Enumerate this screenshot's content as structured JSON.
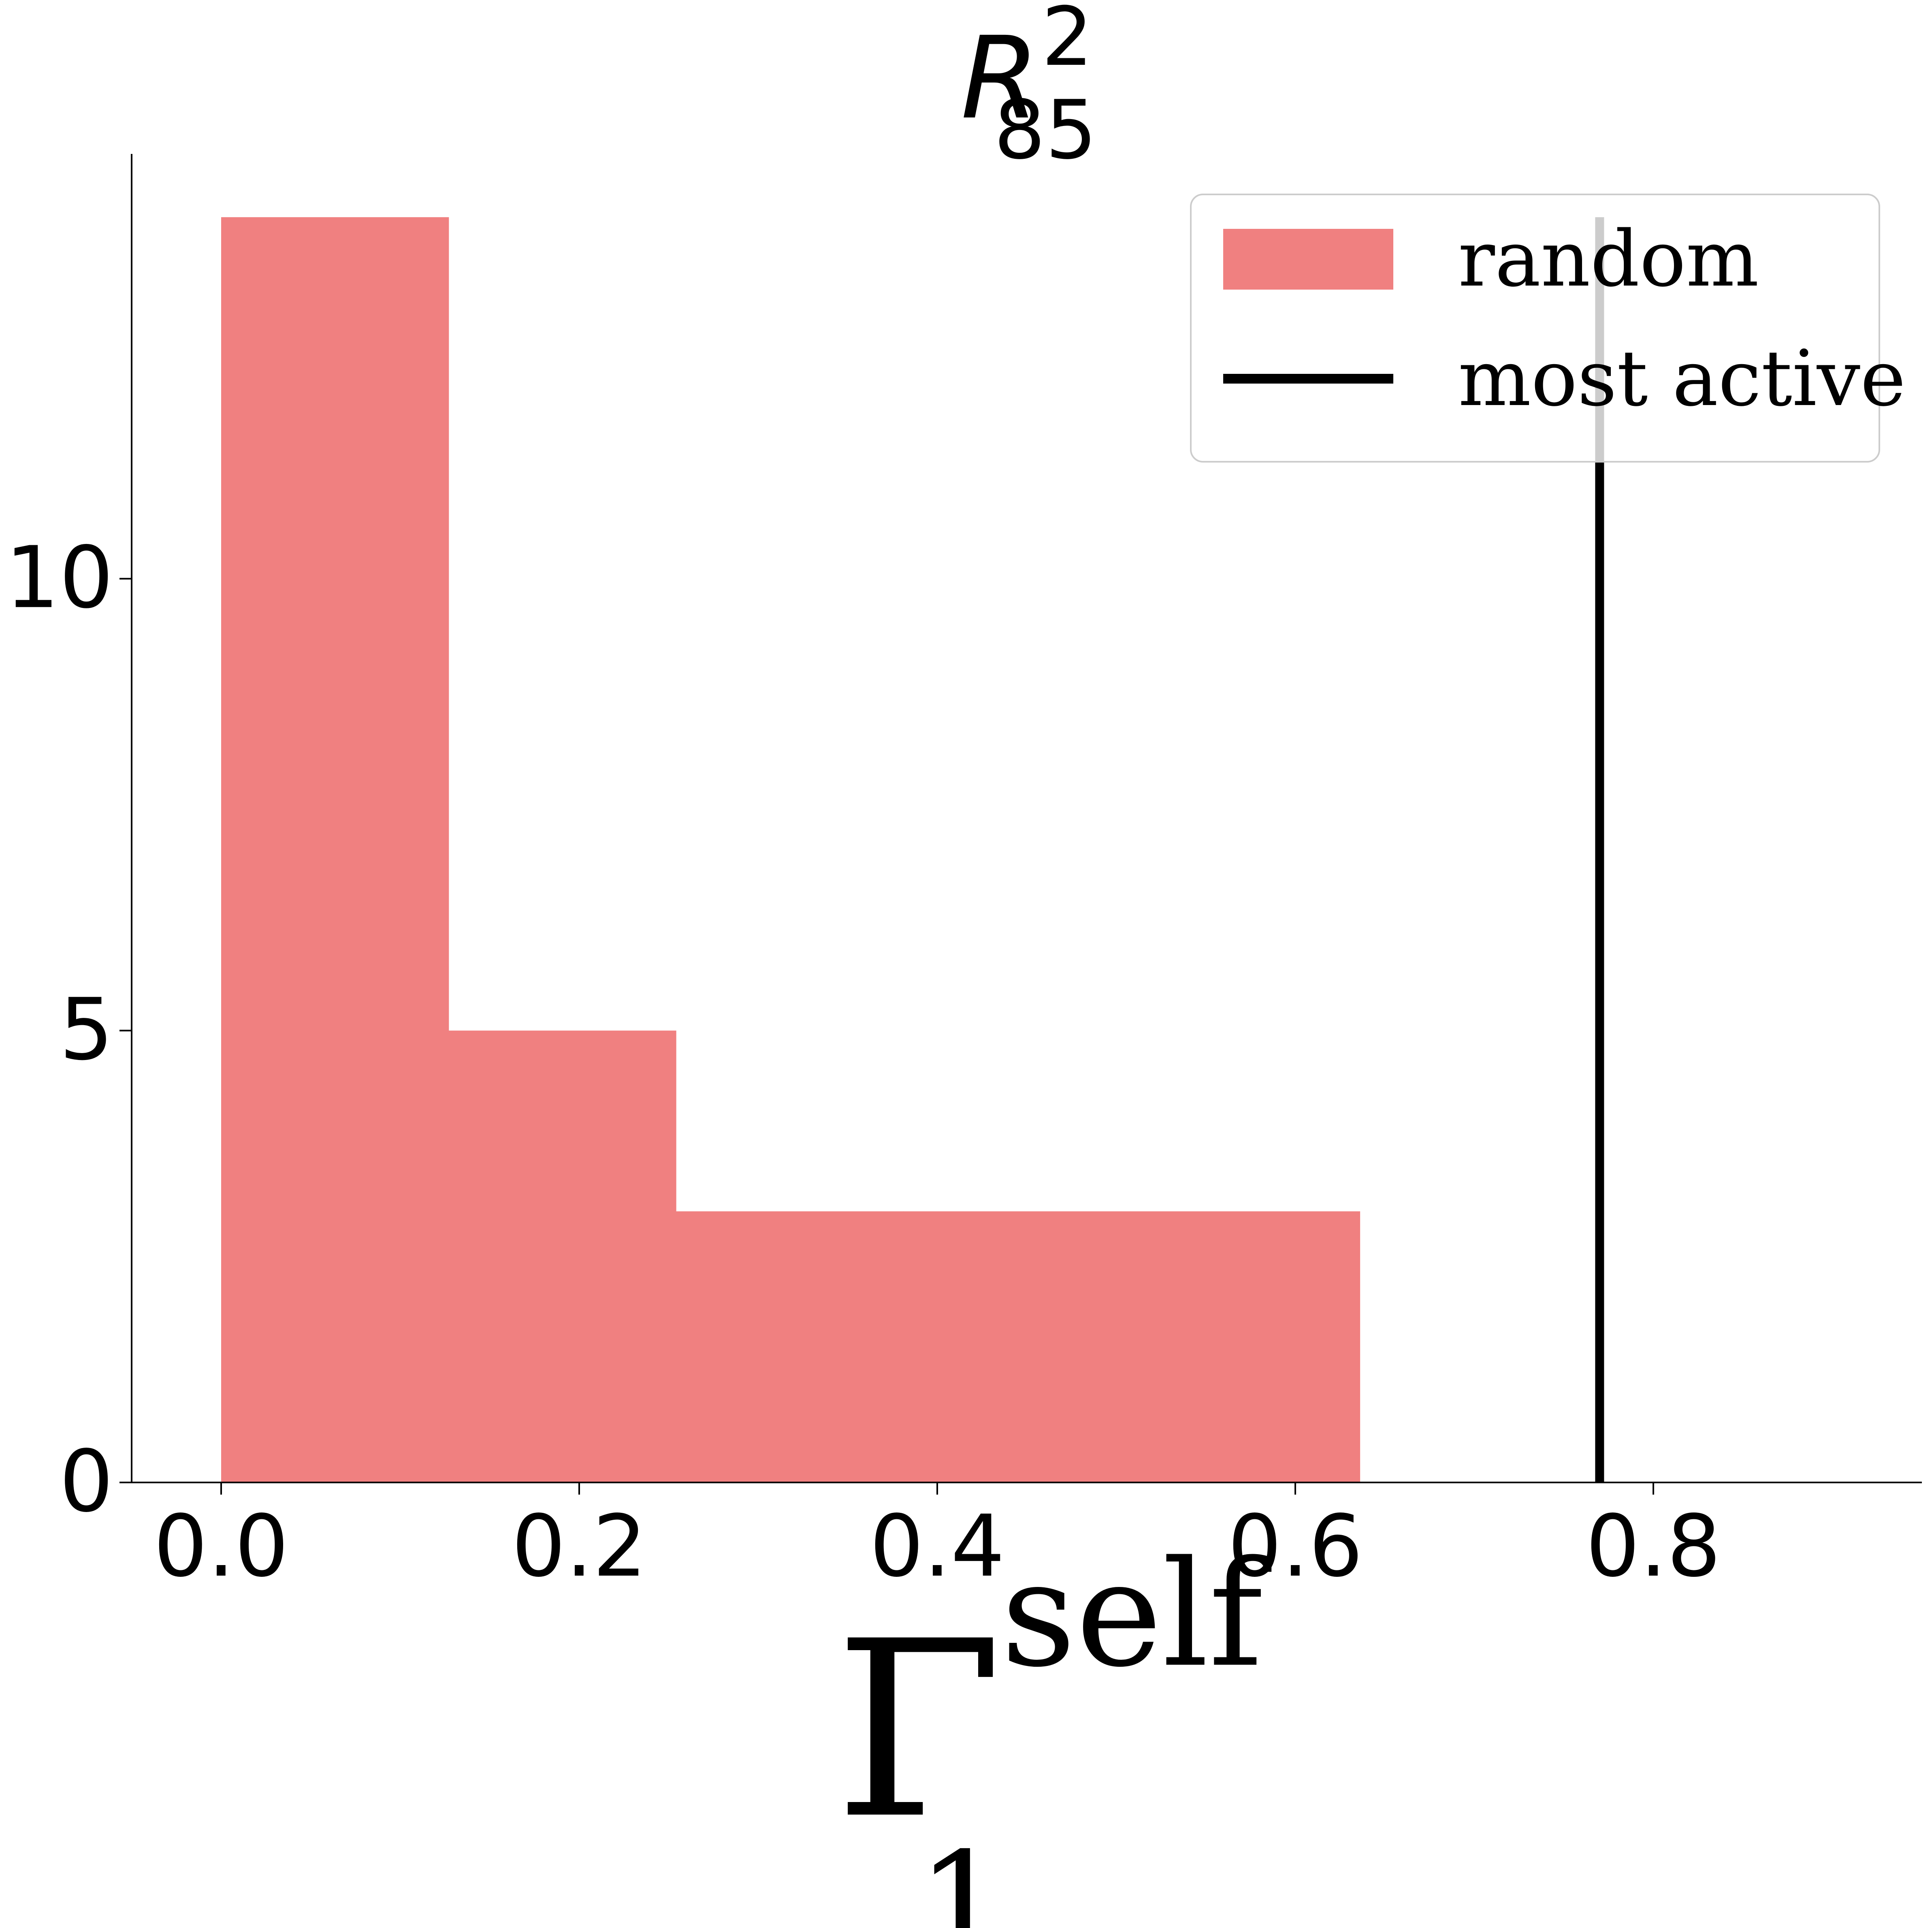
{
  "chart_data": {
    "type": "bar",
    "title": {
      "base": "R",
      "sup": "2",
      "sub": "85"
    },
    "xlabel": {
      "base": "Γ",
      "sup": "self",
      "sub": "1"
    },
    "ylabel": "",
    "xlim": [
      -0.05,
      0.95
    ],
    "ylim": [
      0,
      14.7
    ],
    "xticks": [
      {
        "value": 0.0,
        "label": "0.0"
      },
      {
        "value": 0.2,
        "label": "0.2"
      },
      {
        "value": 0.4,
        "label": "0.4"
      },
      {
        "value": 0.6,
        "label": "0.6"
      },
      {
        "value": 0.8,
        "label": "0.8"
      }
    ],
    "yticks": [
      {
        "value": 0,
        "label": "0"
      },
      {
        "value": 5,
        "label": "5"
      },
      {
        "value": 10,
        "label": "10"
      }
    ],
    "bins": [
      {
        "x0": 0.0,
        "x1": 0.127,
        "count": 14
      },
      {
        "x0": 0.127,
        "x1": 0.254,
        "count": 5
      },
      {
        "x0": 0.254,
        "x1": 0.381,
        "count": 3
      },
      {
        "x0": 0.381,
        "x1": 0.508,
        "count": 3
      },
      {
        "x0": 0.508,
        "x1": 0.636,
        "count": 3
      }
    ],
    "vline": {
      "x": 0.77,
      "y_top": 14
    },
    "series": [
      {
        "name": "random",
        "color": "#f08080",
        "kind": "hist"
      },
      {
        "name": "most active",
        "color": "#000000",
        "kind": "vline"
      }
    ],
    "legend": {
      "position": "top-right",
      "entries": [
        "random",
        "most active"
      ]
    },
    "grid": false
  }
}
